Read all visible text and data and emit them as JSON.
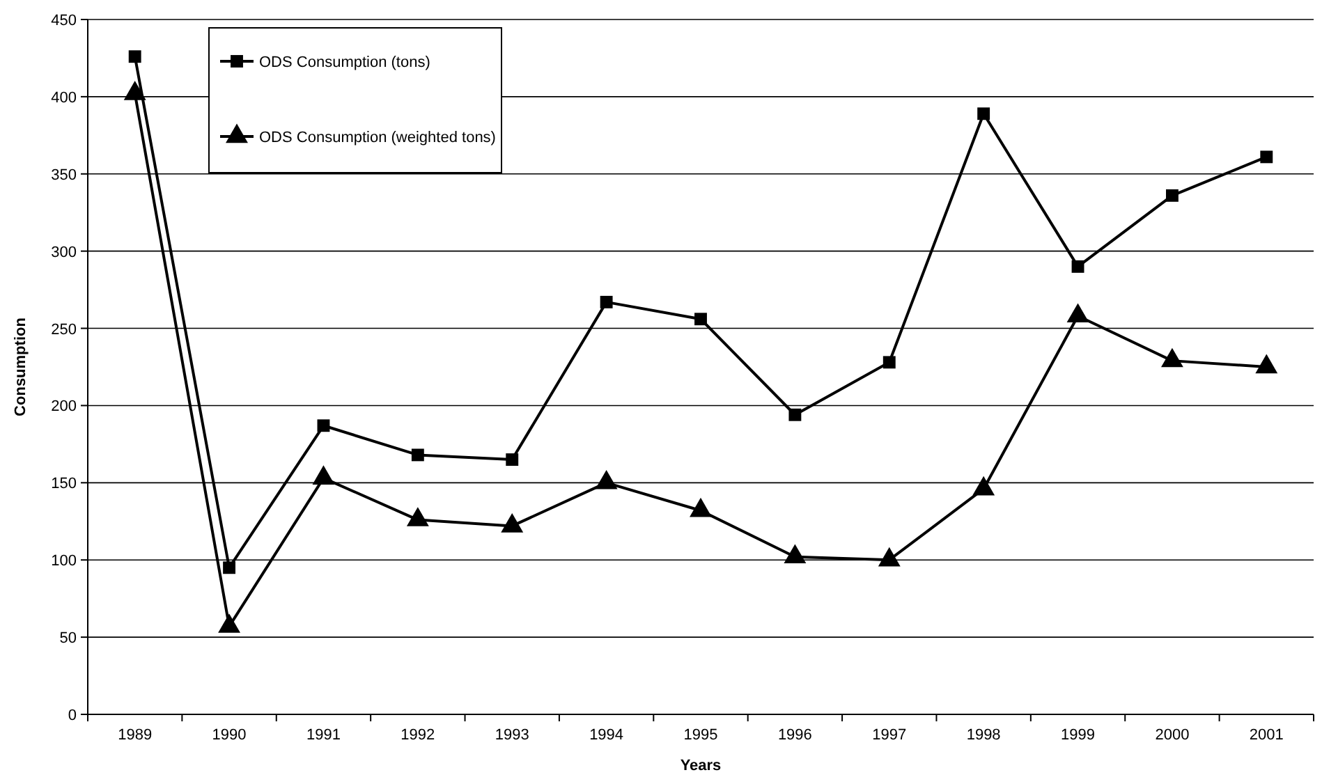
{
  "chart_data": {
    "type": "line",
    "xlabel": "Years",
    "ylabel": "Consumption",
    "categories": [
      "1989",
      "1990",
      "1991",
      "1992",
      "1993",
      "1994",
      "1995",
      "1996",
      "1997",
      "1998",
      "1999",
      "2000",
      "2001"
    ],
    "series": [
      {
        "name": "ODS Consumption (tons)",
        "color": "#000000",
        "marker": "square",
        "values": [
          426,
          95,
          187,
          168,
          165,
          267,
          256,
          194,
          228,
          389,
          290,
          336,
          361
        ]
      },
      {
        "name": "ODS Consumption (weighted tons)",
        "color": "#000000",
        "marker": "triangle",
        "values": [
          402,
          57,
          153,
          126,
          122,
          150,
          132,
          102,
          100,
          146,
          258,
          229,
          225
        ]
      }
    ],
    "ylim": [
      0,
      450
    ],
    "yticks": [
      0,
      50,
      100,
      150,
      200,
      250,
      300,
      350,
      400,
      450
    ],
    "grid": "y",
    "legend": "top left",
    "line_style": "solid"
  }
}
